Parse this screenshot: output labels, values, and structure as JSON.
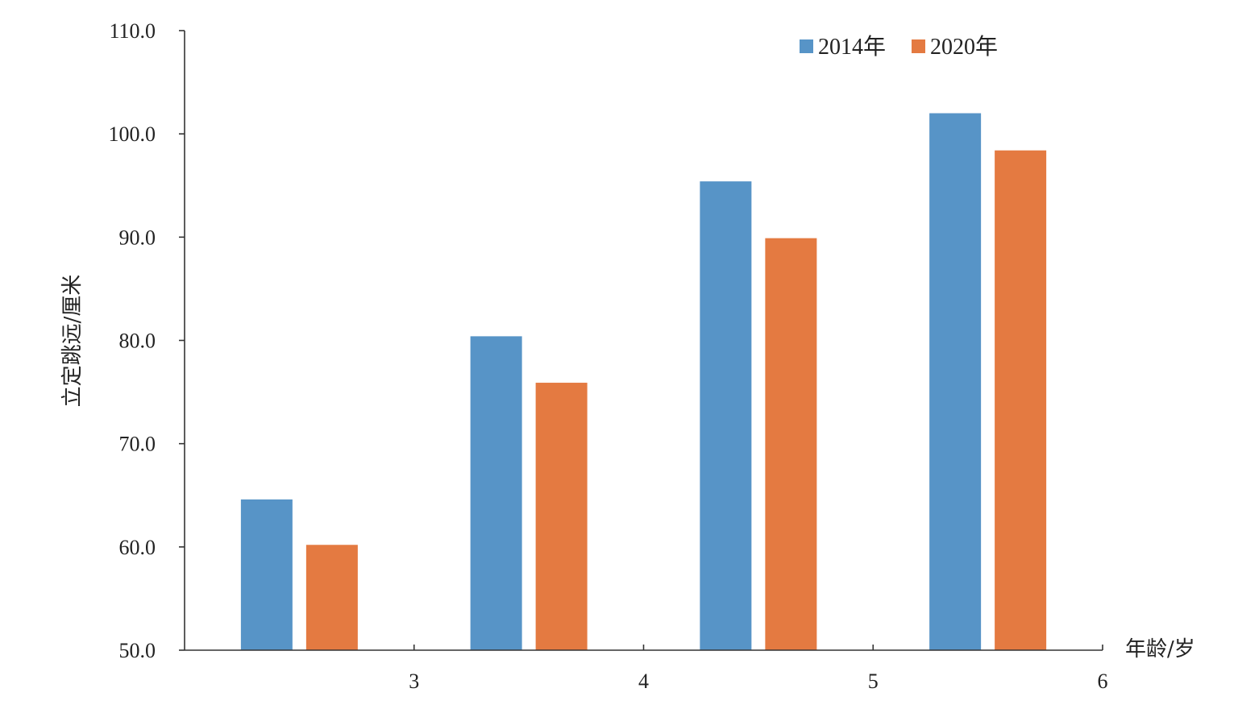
{
  "chart_data": {
    "type": "bar",
    "categories": [
      "3",
      "4",
      "5",
      "6"
    ],
    "series": [
      {
        "name": "2014年",
        "values": [
          64.6,
          80.4,
          95.4,
          102.0
        ]
      },
      {
        "name": "2020年",
        "values": [
          60.2,
          75.9,
          89.9,
          98.4
        ]
      }
    ],
    "xlabel": "年龄/岁",
    "ylabel": "立定跳远/厘米",
    "ylim": [
      50,
      110
    ],
    "yticks": [
      "50.0",
      "60.0",
      "70.0",
      "80.0",
      "90.0",
      "100.0",
      "110.0"
    ],
    "grid": false,
    "legend_position": "top-right",
    "colors": {
      "2014年": "#5794C7",
      "2020年": "#E47A41",
      "axis": "#333333"
    }
  }
}
